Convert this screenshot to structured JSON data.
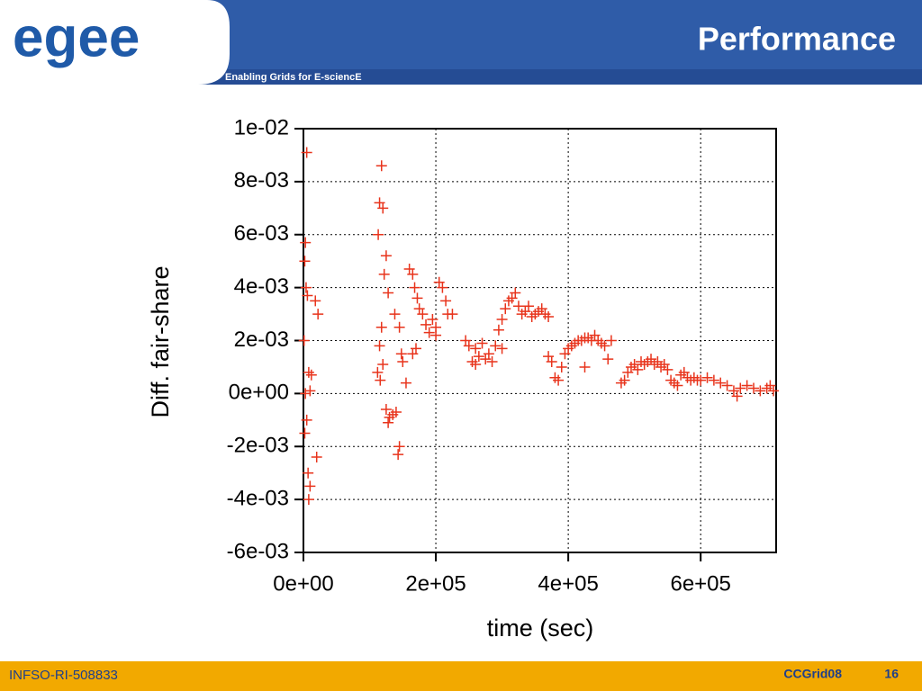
{
  "header": {
    "logo": "egee",
    "title": "Performance",
    "tagline": "Enabling Grids for E-sciencE"
  },
  "footer": {
    "left": "INFSO-RI-508833",
    "center": "CCGrid08",
    "page": "16"
  },
  "chart_data": {
    "type": "scatter",
    "xlabel": "time (sec)",
    "ylabel": "Diff. fair-share",
    "color": "#e8341c",
    "grid": true,
    "xlim": [
      0,
      714000
    ],
    "ylim": [
      -0.006,
      0.01
    ],
    "xticks": [
      {
        "value": 0,
        "label": "0e+00"
      },
      {
        "value": 200000,
        "label": "2e+05"
      },
      {
        "value": 400000,
        "label": "4e+05"
      },
      {
        "value": 600000,
        "label": "6e+05"
      }
    ],
    "yticks": [
      {
        "value": -0.006,
        "label": "-6e-03"
      },
      {
        "value": -0.004,
        "label": "-4e-03"
      },
      {
        "value": -0.002,
        "label": "-2e-03"
      },
      {
        "value": 0,
        "label": "0e+00"
      },
      {
        "value": 0.002,
        "label": "2e-03"
      },
      {
        "value": 0.004,
        "label": "4e-03"
      },
      {
        "value": 0.006,
        "label": "6e-03"
      },
      {
        "value": 0.008,
        "label": "8e-03"
      },
      {
        "value": 0.01,
        "label": "1e-02"
      }
    ],
    "x": [
      5000,
      3000,
      2000,
      4000,
      6000,
      1000,
      3000,
      8000,
      10000,
      5000,
      2000,
      7000,
      10000,
      8000,
      20000,
      18000,
      22000,
      12000,
      118000,
      115000,
      120000,
      113000,
      125000,
      122000,
      128000,
      118000,
      115000,
      112000,
      116000,
      120000,
      125000,
      130000,
      135000,
      128000,
      140000,
      145000,
      143000,
      148000,
      150000,
      155000,
      138000,
      145000,
      160000,
      165000,
      168000,
      172000,
      175000,
      180000,
      185000,
      190000,
      195000,
      200000,
      205000,
      210000,
      215000,
      218000,
      225000,
      165000,
      170000,
      200000,
      245000,
      250000,
      255000,
      260000,
      265000,
      270000,
      275000,
      280000,
      285000,
      290000,
      295000,
      300000,
      305000,
      310000,
      315000,
      320000,
      325000,
      330000,
      335000,
      340000,
      345000,
      350000,
      355000,
      360000,
      365000,
      370000,
      300000,
      260000,
      370000,
      375000,
      380000,
      385000,
      390000,
      395000,
      400000,
      405000,
      410000,
      415000,
      420000,
      425000,
      430000,
      435000,
      440000,
      445000,
      450000,
      455000,
      460000,
      465000,
      425000,
      480000,
      485000,
      490000,
      495000,
      500000,
      505000,
      510000,
      515000,
      520000,
      525000,
      530000,
      535000,
      540000,
      545000,
      550000,
      555000,
      560000,
      565000,
      570000,
      575000,
      580000,
      585000,
      590000,
      595000,
      600000,
      610000,
      620000,
      630000,
      640000,
      650000,
      655000,
      660000,
      670000,
      680000,
      690000,
      700000,
      705000,
      710000
    ],
    "y": [
      0.0091,
      0.0057,
      0.005,
      0.004,
      0.0037,
      0.002,
      0,
      0.0008,
      0.0001,
      -0.001,
      -0.0015,
      -0.003,
      -0.0035,
      -0.004,
      -0.0024,
      0.0035,
      0.003,
      0.0007,
      0.0086,
      0.0072,
      0.007,
      0.006,
      0.0052,
      0.0045,
      0.0038,
      0.0025,
      0.0018,
      0.0008,
      0.0005,
      0.0011,
      -0.0006,
      -0.0009,
      -0.0008,
      -0.0011,
      -0.0007,
      -0.002,
      -0.0023,
      0.0015,
      0.0012,
      0.0004,
      0.003,
      0.0025,
      0.0047,
      0.0045,
      0.004,
      0.0036,
      0.0032,
      0.003,
      0.0026,
      0.0023,
      0.0028,
      0.0025,
      0.0042,
      0.004,
      0.0035,
      0.003,
      0.003,
      0.0015,
      0.0017,
      0.0022,
      0.002,
      0.0018,
      0.0012,
      0.0017,
      0.0014,
      0.0019,
      0.0013,
      0.0015,
      0.0012,
      0.0018,
      0.0024,
      0.0028,
      0.0032,
      0.0035,
      0.0036,
      0.0038,
      0.0033,
      0.003,
      0.0031,
      0.0033,
      0.0029,
      0.003,
      0.0031,
      0.0032,
      0.003,
      0.0029,
      0.0017,
      0.0011,
      0.0014,
      0.0012,
      0.0006,
      0.0005,
      0.001,
      0.0015,
      0.0017,
      0.0018,
      0.0019,
      0.002,
      0.002,
      0.0021,
      0.0021,
      0.002,
      0.0022,
      0.002,
      0.0019,
      0.0018,
      0.0013,
      0.002,
      0.001,
      0.0004,
      0.0005,
      0.0008,
      0.001,
      0.0011,
      0.0009,
      0.0012,
      0.0011,
      0.0012,
      0.0013,
      0.0011,
      0.0012,
      0.001,
      0.0011,
      0.0009,
      0.0005,
      0.0004,
      0.0003,
      0.0007,
      0.0008,
      0.0006,
      0.0005,
      0.0006,
      0.0005,
      0.0005,
      0.0006,
      0.0005,
      0.0004,
      0.0003,
      0.0001,
      -0.0001,
      0.0002,
      0.0003,
      0.0002,
      0.0001,
      0.0002,
      0.0003,
      0.0001
    ]
  }
}
